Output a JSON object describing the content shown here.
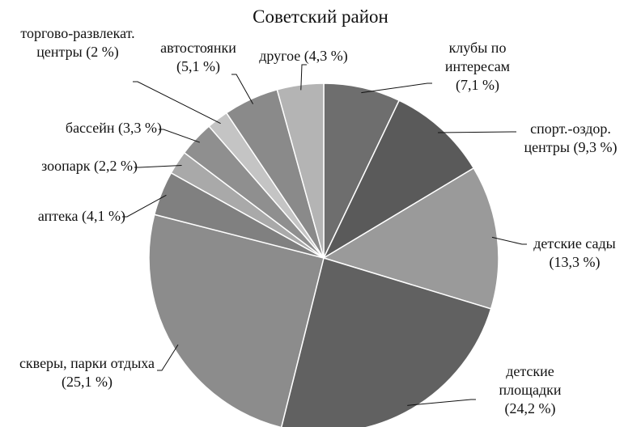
{
  "chart_data": {
    "type": "pie",
    "title": "Советский район",
    "categories": [
      "клубы по интересам",
      "спорт.-оздор. центры",
      "детские сады",
      "детские площадки",
      "скверы, парки отдыха",
      "аптека",
      "зоопарк",
      "бассейн",
      "торгово-развлекат. центры",
      "автостоянки",
      "другое"
    ],
    "values": [
      7.1,
      9.3,
      13.3,
      24.2,
      25.1,
      4.1,
      2.2,
      3.3,
      2,
      5.1,
      4.3
    ],
    "value_labels": [
      "(7,1 %)",
      "(9,3 %)",
      "(13,3 %)",
      "(24,2 %)",
      "(25,1 %)",
      "(4,1 %)",
      "(2,2 %)",
      "(3,3 %)",
      "(2 %)",
      "(5,1 %)",
      "(4,3 %)"
    ],
    "colors": [
      "#6e6e6e",
      "#5a5a5a",
      "#9a9a9a",
      "#616161",
      "#8c8c8c",
      "#808080",
      "#a9a9a9",
      "#8f8f8f",
      "#c4c4c4",
      "#8a8a8a",
      "#b4b4b4"
    ]
  }
}
